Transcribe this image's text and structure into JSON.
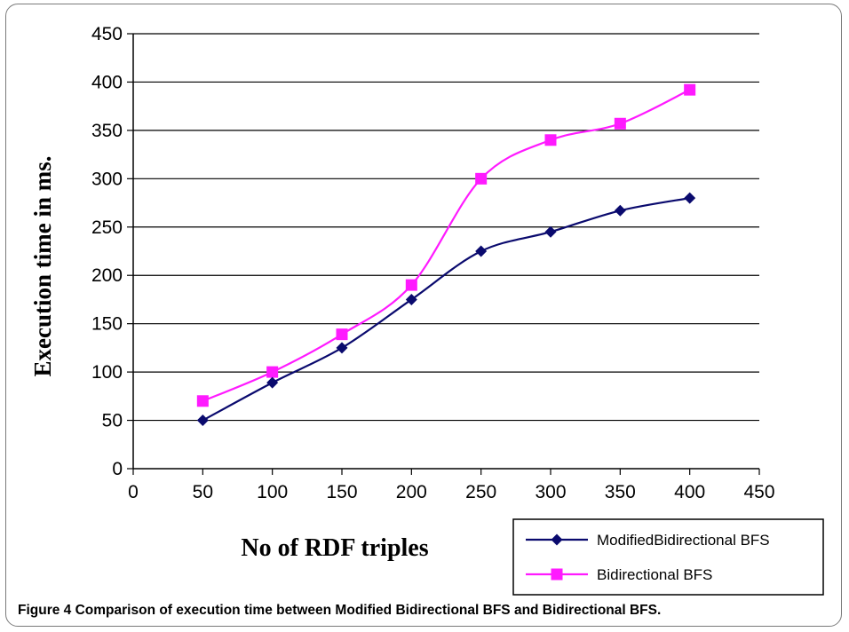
{
  "chart_data": {
    "type": "line",
    "title": "",
    "xlabel": "No of RDF triples",
    "ylabel": "Execution time in ms.",
    "xlim": [
      0,
      450
    ],
    "ylim": [
      0,
      450
    ],
    "xticks": [
      "0",
      "50",
      "100",
      "150",
      "200",
      "250",
      "300",
      "350",
      "400",
      "450"
    ],
    "yticks": [
      "0",
      "50",
      "100",
      "150",
      "200",
      "250",
      "300",
      "350",
      "400",
      "450"
    ],
    "grid": "horizontal",
    "legend_position": "bottom-right",
    "x": [
      50,
      100,
      150,
      200,
      250,
      300,
      350,
      400
    ],
    "series": [
      {
        "name": "ModifiedBidirectional BFS",
        "color": "#0a0a6e",
        "marker": "diamond",
        "values": [
          50,
          89,
          125,
          175,
          225,
          245,
          267,
          280
        ]
      },
      {
        "name": "Bidirectional BFS",
        "color": "#ff1aff",
        "marker": "square",
        "values": [
          70,
          100,
          139,
          190,
          300,
          340,
          357,
          392
        ]
      }
    ]
  },
  "caption": {
    "label": "Figure 4",
    "text": "Comparison of execution time between Modified Bidirectional BFS and Bidirectional BFS."
  }
}
